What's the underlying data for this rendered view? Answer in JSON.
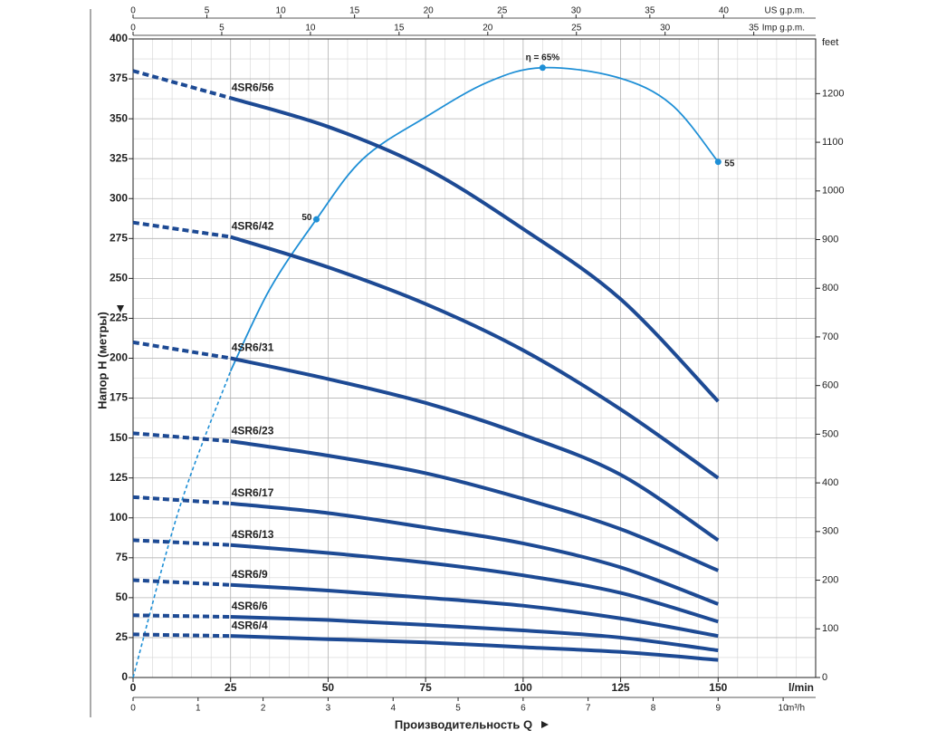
{
  "chart_data": {
    "type": "line",
    "y_label": "Напор H (метры)",
    "x_label": "Производительность Q",
    "x_unit": "l/min",
    "y2_label": "feet",
    "x": [
      0,
      25,
      50,
      75,
      100,
      125,
      150
    ],
    "xlim": [
      0,
      175
    ],
    "xticks": [
      0,
      25,
      50,
      75,
      100,
      125,
      150
    ],
    "ylim": [
      0,
      400
    ],
    "yticks": [
      0,
      25,
      50,
      75,
      100,
      125,
      150,
      175,
      200,
      225,
      250,
      275,
      300,
      325,
      350,
      375,
      400
    ],
    "y2lim": [
      0,
      1312.34
    ],
    "y2ticks": [
      0,
      100,
      200,
      300,
      400,
      500,
      600,
      700,
      800,
      900,
      1000,
      1100,
      1200
    ],
    "grid": true,
    "minor_grid": {
      "x_step": 5,
      "y_step": 12.5
    },
    "dashed_until_x": 25,
    "extra_x_axes": [
      {
        "label": "US g.p.m.",
        "side": "top",
        "lim": [
          0,
          46.23
        ],
        "ticks": [
          0,
          5,
          10,
          15,
          20,
          25,
          30,
          35,
          40
        ]
      },
      {
        "label": "Imp g.p.m.",
        "side": "top",
        "lim": [
          0,
          38.49
        ],
        "ticks": [
          0,
          5,
          10,
          15,
          20,
          25,
          30,
          35
        ]
      },
      {
        "label": "m³/h",
        "side": "bottom",
        "lim": [
          0,
          10.5
        ],
        "ticks": [
          0,
          1,
          2,
          3,
          4,
          5,
          6,
          7,
          8,
          9,
          10
        ]
      }
    ],
    "series": [
      {
        "name": "4SR6/56",
        "color": "#1d4a94",
        "values": [
          380,
          363,
          345,
          319,
          281,
          237,
          173
        ]
      },
      {
        "name": "4SR6/42",
        "color": "#1d4a94",
        "values": [
          285,
          276,
          257,
          234,
          205,
          168,
          125
        ]
      },
      {
        "name": "4SR6/31",
        "color": "#1d4a94",
        "values": [
          210,
          200,
          187,
          172,
          152,
          127,
          86
        ]
      },
      {
        "name": "4SR6/23",
        "color": "#1d4a94",
        "values": [
          153,
          148,
          139,
          128,
          112,
          93,
          67
        ]
      },
      {
        "name": "4SR6/17",
        "color": "#1d4a94",
        "values": [
          113,
          109,
          103,
          94,
          84,
          69,
          46
        ]
      },
      {
        "name": "4SR6/13",
        "color": "#1d4a94",
        "values": [
          86,
          83,
          78,
          72,
          64,
          53,
          35
        ]
      },
      {
        "name": "4SR6/9",
        "color": "#1d4a94",
        "values": [
          61,
          58,
          54.5,
          50,
          45,
          37,
          26
        ]
      },
      {
        "name": "4SR6/6",
        "color": "#1d4a94",
        "values": [
          39,
          38,
          36,
          33,
          29.5,
          25,
          17
        ]
      },
      {
        "name": "4SR6/4",
        "color": "#1d4a94",
        "values": [
          27,
          26,
          24,
          22,
          19,
          16,
          11
        ]
      }
    ],
    "efficiency_curve": {
      "color": "#1e8fd6",
      "x": [
        0,
        12,
        25,
        35,
        47,
        59,
        75,
        91,
        105,
        124,
        138,
        150
      ],
      "values": [
        0,
        107,
        192,
        243,
        287,
        325,
        351,
        373,
        382,
        376,
        359,
        323
      ]
    },
    "annotations": [
      {
        "text": "η = 65%",
        "x": 105,
        "y": 382,
        "anchor": "above"
      },
      {
        "text": "50",
        "x": 47,
        "y": 287,
        "anchor": "left"
      },
      {
        "text": "55",
        "x": 150,
        "y": 323,
        "anchor": "right"
      }
    ]
  }
}
